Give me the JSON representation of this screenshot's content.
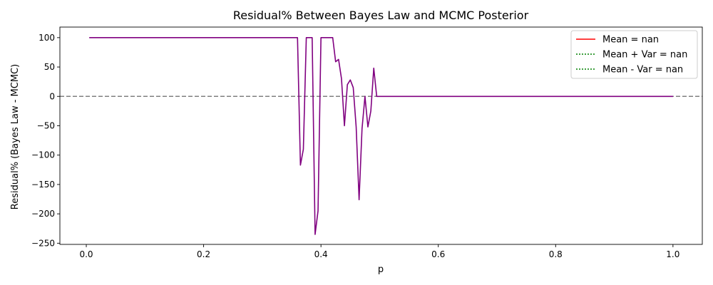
{
  "chart_data": {
    "type": "line",
    "title": "Residual% Between Bayes Law and MCMC Posterior",
    "xlabel": "p",
    "ylabel": "Residual% (Bayes Law - MCMC)",
    "xlim": [
      -0.045,
      1.05
    ],
    "ylim": [
      -252,
      118
    ],
    "xticks": [
      0.0,
      0.2,
      0.4,
      0.6,
      0.8,
      1.0
    ],
    "xtick_labels": [
      "0.0",
      "0.2",
      "0.4",
      "0.6",
      "0.8",
      "1.0"
    ],
    "yticks": [
      100,
      50,
      0,
      -50,
      -100,
      -150,
      -200,
      -250
    ],
    "ytick_labels": [
      "100",
      "50",
      "0",
      "−50",
      "−100",
      "−150",
      "−200",
      "−250"
    ],
    "grid": false,
    "legend_position": "top-right",
    "legend": [
      {
        "label": "Mean = nan",
        "style": "solid",
        "color": "#ff0000"
      },
      {
        "label": "Mean + Var = nan",
        "style": "dotted",
        "color": "#008000"
      },
      {
        "label": "Mean - Var = nan",
        "style": "dotted",
        "color": "#008000"
      }
    ],
    "reference_line": {
      "y": 0,
      "style": "dashed",
      "color": "#808080"
    },
    "series": [
      {
        "color": "#800080",
        "x": [
          0.005,
          0.355,
          0.36,
          0.365,
          0.37,
          0.375,
          0.38,
          0.385,
          0.39,
          0.395,
          0.4,
          0.405,
          0.41,
          0.415,
          0.42,
          0.425,
          0.43,
          0.435,
          0.44,
          0.445,
          0.45,
          0.455,
          0.46,
          0.465,
          0.47,
          0.475,
          0.48,
          0.485,
          0.49,
          0.495,
          0.5,
          0.505,
          1.0
        ],
        "y": [
          100,
          100,
          100,
          -117,
          -90,
          100,
          100,
          100,
          -235,
          -195,
          100,
          100,
          100,
          100,
          100,
          59,
          63,
          30,
          -50,
          20,
          28,
          15,
          -52,
          -176,
          -55,
          0,
          -52,
          -25,
          48,
          0,
          0,
          0,
          0
        ]
      }
    ]
  }
}
